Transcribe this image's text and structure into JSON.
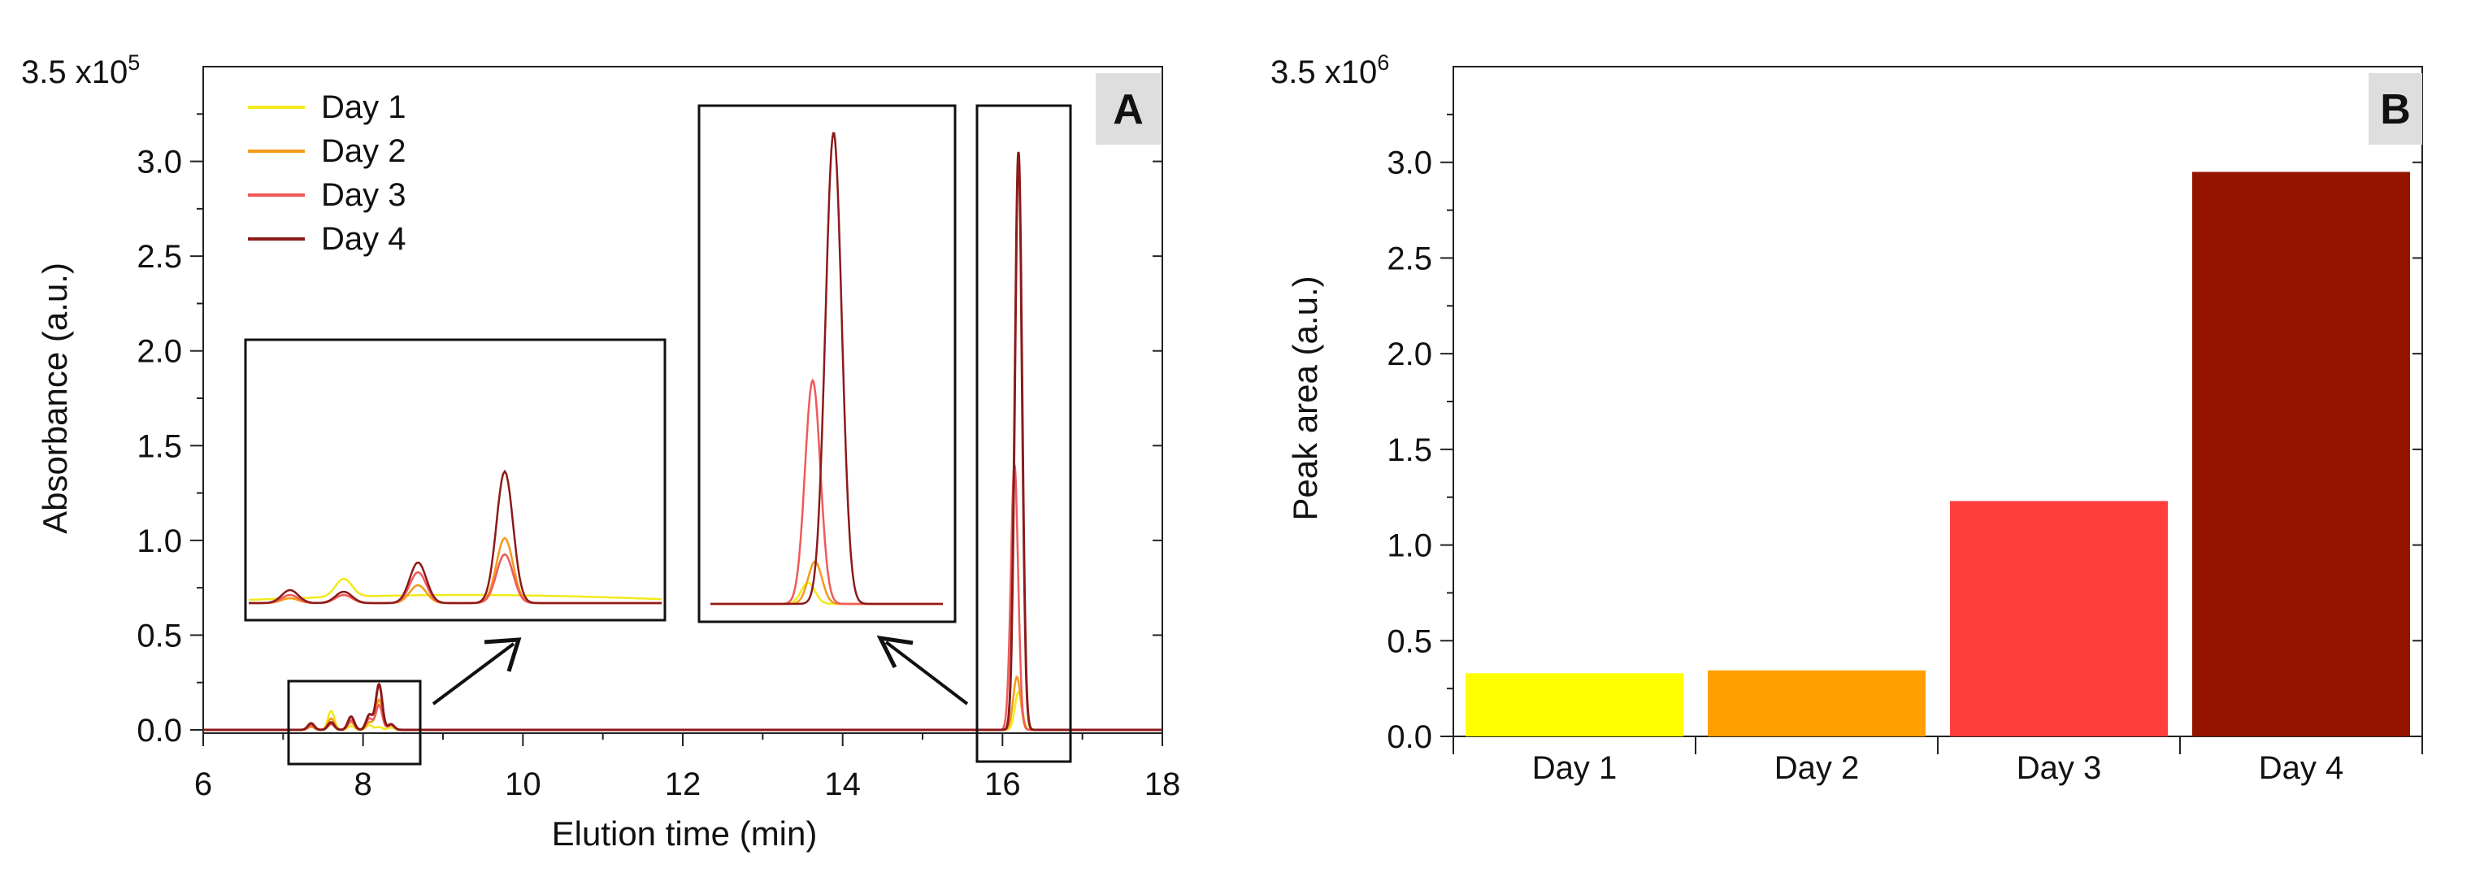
{
  "chart_data": [
    {
      "panel": "A",
      "panel_label": "A",
      "type": "line",
      "xlabel": "Elution time (min)",
      "ylabel": "Absorbance (a.u.)",
      "ymax_label_base": "3.5 x10",
      "ymax_label_exp": "5",
      "xlim": [
        6,
        18
      ],
      "ylim": [
        0,
        350000
      ],
      "xticks": [
        "6",
        "8",
        "10",
        "12",
        "14",
        "16",
        "18"
      ],
      "xtick_values": [
        6,
        8,
        10,
        12,
        14,
        16,
        18
      ],
      "yticks": [
        "0.0",
        "0.5",
        "1.0",
        "1.5",
        "2.0",
        "2.5",
        "3.0"
      ],
      "ytick_values": [
        0,
        50000,
        100000,
        150000,
        200000,
        250000,
        300000
      ],
      "legend_position": "top-left",
      "series": [
        {
          "name": "Day 1",
          "color": "#f2ea1a",
          "peaks": [
            [
              7.35,
              3000
            ],
            [
              7.6,
              10000
            ],
            [
              7.85,
              2000
            ],
            [
              8.08,
              2500
            ],
            [
              8.2,
              1500
            ],
            [
              8.35,
              1200
            ],
            [
              16.2,
              20000
            ]
          ]
        },
        {
          "name": "Day 2",
          "color": "#f39a1b",
          "peaks": [
            [
              7.35,
              1500
            ],
            [
              7.6,
              6000
            ],
            [
              7.85,
              4000
            ],
            [
              8.08,
              4000
            ],
            [
              8.2,
              16000
            ],
            [
              8.35,
              2500
            ],
            [
              16.18,
              28000
            ]
          ]
        },
        {
          "name": "Day 3",
          "color": "#ef5a5a",
          "peaks": [
            [
              7.35,
              2500
            ],
            [
              7.6,
              3000
            ],
            [
              7.85,
              5000
            ],
            [
              8.08,
              6000
            ],
            [
              8.2,
              13000
            ],
            [
              8.35,
              2500
            ],
            [
              16.15,
              140000
            ]
          ]
        },
        {
          "name": "Day 4",
          "color": "#8c1a1a",
          "peaks": [
            [
              7.35,
              3500
            ],
            [
              7.6,
              4000
            ],
            [
              7.85,
              7000
            ],
            [
              8.08,
              8000
            ],
            [
              8.2,
              24000
            ],
            [
              8.35,
              3000
            ],
            [
              16.2,
              305000
            ]
          ]
        }
      ]
    },
    {
      "panel": "B",
      "panel_label": "B",
      "type": "bar",
      "xlabel": "",
      "ylabel": "Peak area (a.u.)",
      "ymax_label_base": "3.5 x10",
      "ymax_label_exp": "6",
      "ylim": [
        0,
        3500000
      ],
      "yticks": [
        "0.0",
        "0.5",
        "1.0",
        "1.5",
        "2.0",
        "2.5",
        "3.0"
      ],
      "ytick_values": [
        0,
        500000,
        1000000,
        1500000,
        2000000,
        2500000,
        3000000
      ],
      "categories": [
        "Day 1",
        "Day 2",
        "Day 3",
        "Day 4"
      ],
      "values": [
        330000,
        345000,
        1230000,
        2950000
      ],
      "colors": [
        "#ffff00",
        "#ff9f00",
        "#ff3e3e",
        "#941400"
      ]
    }
  ]
}
